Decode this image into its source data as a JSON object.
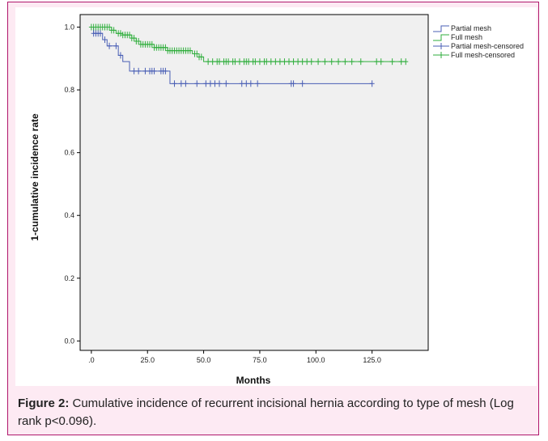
{
  "caption": {
    "label": "Figure 2:",
    "text": " Cumulative incidence of recurrent incisional hernia according to type of mesh (Log rank p<0.096)."
  },
  "chart_data": {
    "type": "line",
    "subtype": "kaplan-meier-step",
    "xlabel": "Months",
    "ylabel": "1-cumulative incidence rate",
    "xlim": [
      -5,
      150
    ],
    "ylim": [
      -0.03,
      1.04
    ],
    "x_ticks": [
      0,
      25,
      50,
      75,
      100,
      125
    ],
    "x_tick_labels": [
      ".0",
      "25.0",
      "50.0",
      "75.0",
      "100.0",
      "125.0"
    ],
    "y_ticks": [
      0,
      0.2,
      0.4,
      0.6,
      0.8,
      1.0
    ],
    "y_tick_labels": [
      "0.0",
      "0.2",
      "0.4",
      "0.6",
      "0.8",
      "1.0"
    ],
    "grid": false,
    "plot_background": "#f0f0f0",
    "legend_position": "right",
    "legend": [
      "Partial mesh",
      "Full mesh",
      "Partial mesh-censored",
      "Full mesh-censored"
    ],
    "series": [
      {
        "name": "Partial mesh",
        "color": "#4a5fb5",
        "steps": [
          [
            0,
            1.0
          ],
          [
            1,
            0.98
          ],
          [
            5,
            0.96
          ],
          [
            7,
            0.94
          ],
          [
            12,
            0.91
          ],
          [
            14,
            0.89
          ],
          [
            17,
            0.86
          ],
          [
            35,
            0.82
          ],
          [
            125,
            0.82
          ]
        ],
        "censored": [
          1,
          2,
          3,
          4,
          6,
          8,
          11,
          13,
          19,
          21,
          24,
          26,
          27,
          28,
          31,
          32,
          33,
          37,
          40,
          42,
          47,
          51,
          53,
          55,
          57,
          60,
          67,
          69,
          71,
          74,
          89,
          90,
          94,
          125
        ]
      },
      {
        "name": "Full mesh",
        "color": "#2fae3c",
        "steps": [
          [
            0,
            1.0
          ],
          [
            9,
            0.99
          ],
          [
            11,
            0.98
          ],
          [
            14,
            0.975
          ],
          [
            18,
            0.965
          ],
          [
            20,
            0.955
          ],
          [
            22,
            0.945
          ],
          [
            28,
            0.935
          ],
          [
            34,
            0.925
          ],
          [
            45,
            0.915
          ],
          [
            48,
            0.905
          ],
          [
            50,
            0.89
          ],
          [
            140,
            0.89
          ]
        ],
        "censored": [
          0,
          1,
          2,
          3,
          4,
          5,
          6,
          7,
          8,
          9,
          10,
          12,
          13,
          14,
          15,
          16,
          17,
          18,
          19,
          20,
          21,
          22,
          23,
          24,
          25,
          26,
          27,
          28,
          29,
          30,
          31,
          32,
          33,
          34,
          35,
          36,
          37,
          38,
          39,
          40,
          41,
          42,
          43,
          44,
          46,
          47,
          48,
          49,
          52,
          54,
          56,
          57,
          59,
          60,
          61,
          63,
          64,
          66,
          68,
          69,
          70,
          72,
          73,
          75,
          77,
          78,
          80,
          82,
          84,
          86,
          88,
          90,
          92,
          94,
          96,
          98,
          101,
          104,
          107,
          110,
          113,
          116,
          120,
          127,
          129,
          134,
          138,
          140
        ]
      }
    ]
  }
}
